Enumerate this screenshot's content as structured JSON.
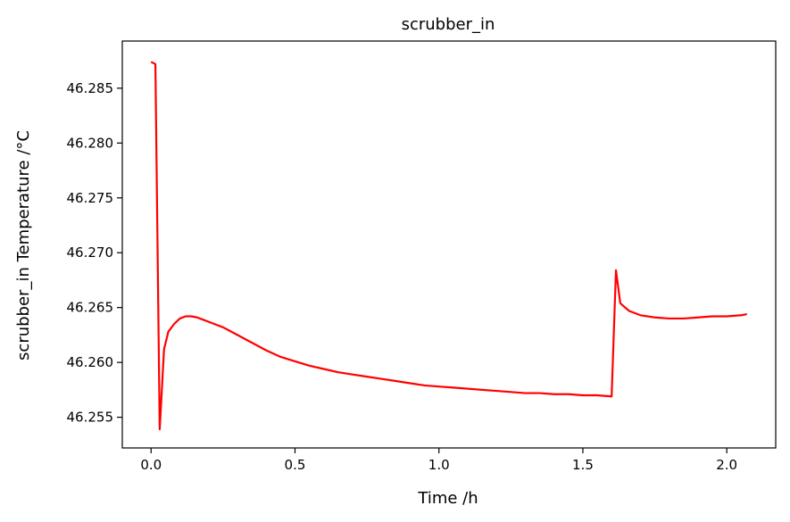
{
  "chart_data": {
    "type": "line",
    "title": "scrubber_in",
    "xlabel": "Time /h",
    "ylabel": "scrubber_in Temperature /°C",
    "xlim": [
      -0.1,
      2.17
    ],
    "ylim": [
      46.2522,
      46.2893
    ],
    "xticks": [
      0.0,
      0.5,
      1.0,
      1.5,
      2.0
    ],
    "xtick_labels": [
      "0.0",
      "0.5",
      "1.0",
      "1.5",
      "2.0"
    ],
    "yticks": [
      46.255,
      46.26,
      46.265,
      46.27,
      46.275,
      46.28,
      46.285
    ],
    "ytick_labels": [
      "46.255",
      "46.260",
      "46.265",
      "46.270",
      "46.275",
      "46.280",
      "46.285"
    ],
    "grid": false,
    "series": [
      {
        "color": "#ff0000",
        "x": [
          0.0,
          0.015,
          0.03,
          0.045,
          0.06,
          0.08,
          0.1,
          0.12,
          0.14,
          0.16,
          0.18,
          0.2,
          0.22,
          0.25,
          0.3,
          0.35,
          0.4,
          0.45,
          0.5,
          0.55,
          0.6,
          0.65,
          0.7,
          0.75,
          0.8,
          0.85,
          0.9,
          0.95,
          1.0,
          1.05,
          1.1,
          1.15,
          1.2,
          1.25,
          1.3,
          1.35,
          1.4,
          1.45,
          1.5,
          1.55,
          1.6,
          1.615,
          1.63,
          1.66,
          1.7,
          1.75,
          1.8,
          1.85,
          1.9,
          1.95,
          2.0,
          2.05,
          2.07
        ],
        "y": [
          46.2874,
          46.2872,
          46.2539,
          46.2612,
          46.2628,
          46.2635,
          46.264,
          46.2642,
          46.2642,
          46.2641,
          46.2639,
          46.2637,
          46.2635,
          46.2632,
          46.2625,
          46.2618,
          46.2611,
          46.2605,
          46.2601,
          46.2597,
          46.2594,
          46.2591,
          46.2589,
          46.2587,
          46.2585,
          46.2583,
          46.2581,
          46.2579,
          46.2578,
          46.2577,
          46.2576,
          46.2575,
          46.2574,
          46.2573,
          46.2572,
          46.2572,
          46.2571,
          46.2571,
          46.257,
          46.257,
          46.2569,
          46.2684,
          46.2654,
          46.2647,
          46.2643,
          46.2641,
          46.264,
          46.264,
          46.2641,
          46.2642,
          46.2642,
          46.2643,
          46.2644
        ]
      }
    ]
  }
}
